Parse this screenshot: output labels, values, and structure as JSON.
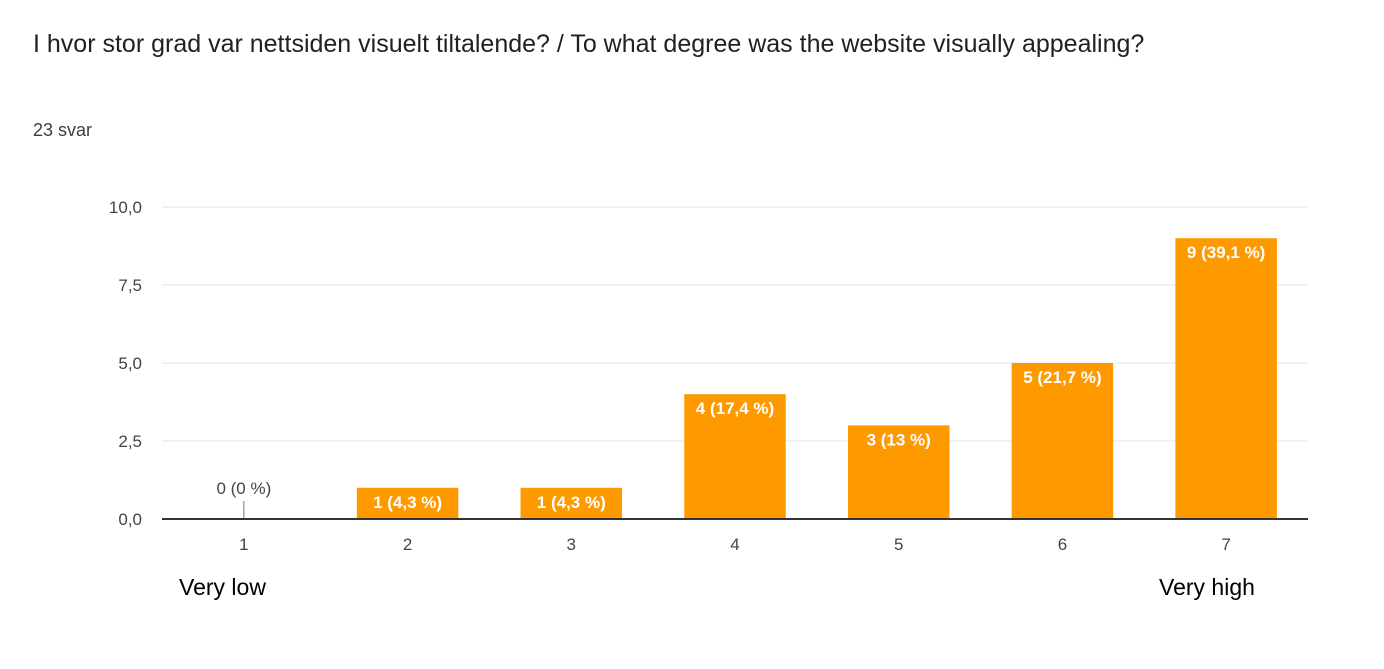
{
  "question": {
    "title": "I hvor stor grad var nettsiden visuelt tiltalende? / To what degree was the website visually appealing?",
    "response_count": "23 svar"
  },
  "scale_labels": {
    "low": "Very low",
    "high": "Very high"
  },
  "colors": {
    "bar": "#ff9900",
    "grid": "#e6e6e6",
    "axis": "#333333"
  },
  "chart_data": {
    "type": "bar",
    "categories": [
      "1",
      "2",
      "3",
      "4",
      "5",
      "6",
      "7"
    ],
    "values": [
      0,
      1,
      1,
      4,
      3,
      5,
      9
    ],
    "data_labels": [
      "0 (0 %)",
      "1 (4,3 %)",
      "1 (4,3 %)",
      "4 (17,4 %)",
      "3 (13 %)",
      "5 (21,7 %)",
      "9 (39,1 %)"
    ],
    "y_ticks": [
      "0,0",
      "2,5",
      "5,0",
      "7,5",
      "10,0"
    ],
    "y_tick_values": [
      0,
      2.5,
      5,
      7.5,
      10
    ],
    "ylim": [
      0,
      10
    ],
    "grid": true,
    "legend": "none"
  }
}
